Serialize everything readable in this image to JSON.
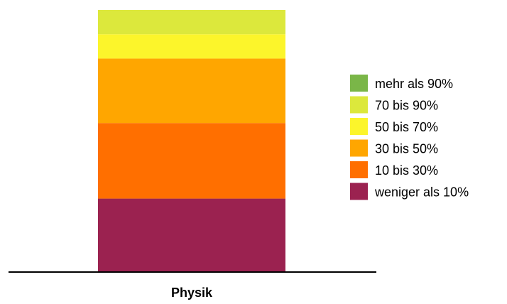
{
  "chart_data": {
    "type": "bar",
    "stacked": true,
    "categories": [
      "Physik"
    ],
    "series": [
      {
        "name": "weniger als 10%",
        "color": "#9b2250",
        "values": [
          27.8
        ]
      },
      {
        "name": "10 bis 30%",
        "color": "#ff6f00",
        "values": [
          28.6
        ]
      },
      {
        "name": "30 bis 50%",
        "color": "#ffa600",
        "values": [
          24.4
        ]
      },
      {
        "name": "50 bis 70%",
        "color": "#fcf52b",
        "values": [
          9.2
        ]
      },
      {
        "name": "70 bis 90%",
        "color": "#dce83c",
        "values": [
          9.2
        ]
      },
      {
        "name": "mehr als 90%",
        "color": "#7ab648",
        "values": [
          0
        ]
      }
    ],
    "ylim": [
      0,
      100
    ],
    "legend": {
      "placement": "right",
      "order": [
        "mehr als 90%",
        "70 bis 90%",
        "50 bis 70%",
        "30 bis 50%",
        "10 bis 30%",
        "weniger als 10%"
      ]
    },
    "grid": false
  }
}
